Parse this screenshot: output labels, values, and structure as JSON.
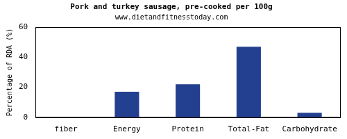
{
  "chart_data": {
    "type": "bar",
    "title": "Pork and turkey sausage, pre-cooked per 100g",
    "subtitle": "www.dietandfitnesstoday.com",
    "y_label": "Percentage of RDA (%)",
    "categories": [
      "fiber",
      "Energy",
      "Protein",
      "Total-Fat",
      "Carbohydrate"
    ],
    "values": [
      0,
      17,
      22,
      47,
      3
    ],
    "color": "#233f8f",
    "ylim": [
      0,
      60
    ],
    "yticks": [
      0,
      20,
      40,
      60
    ],
    "grid": false
  }
}
